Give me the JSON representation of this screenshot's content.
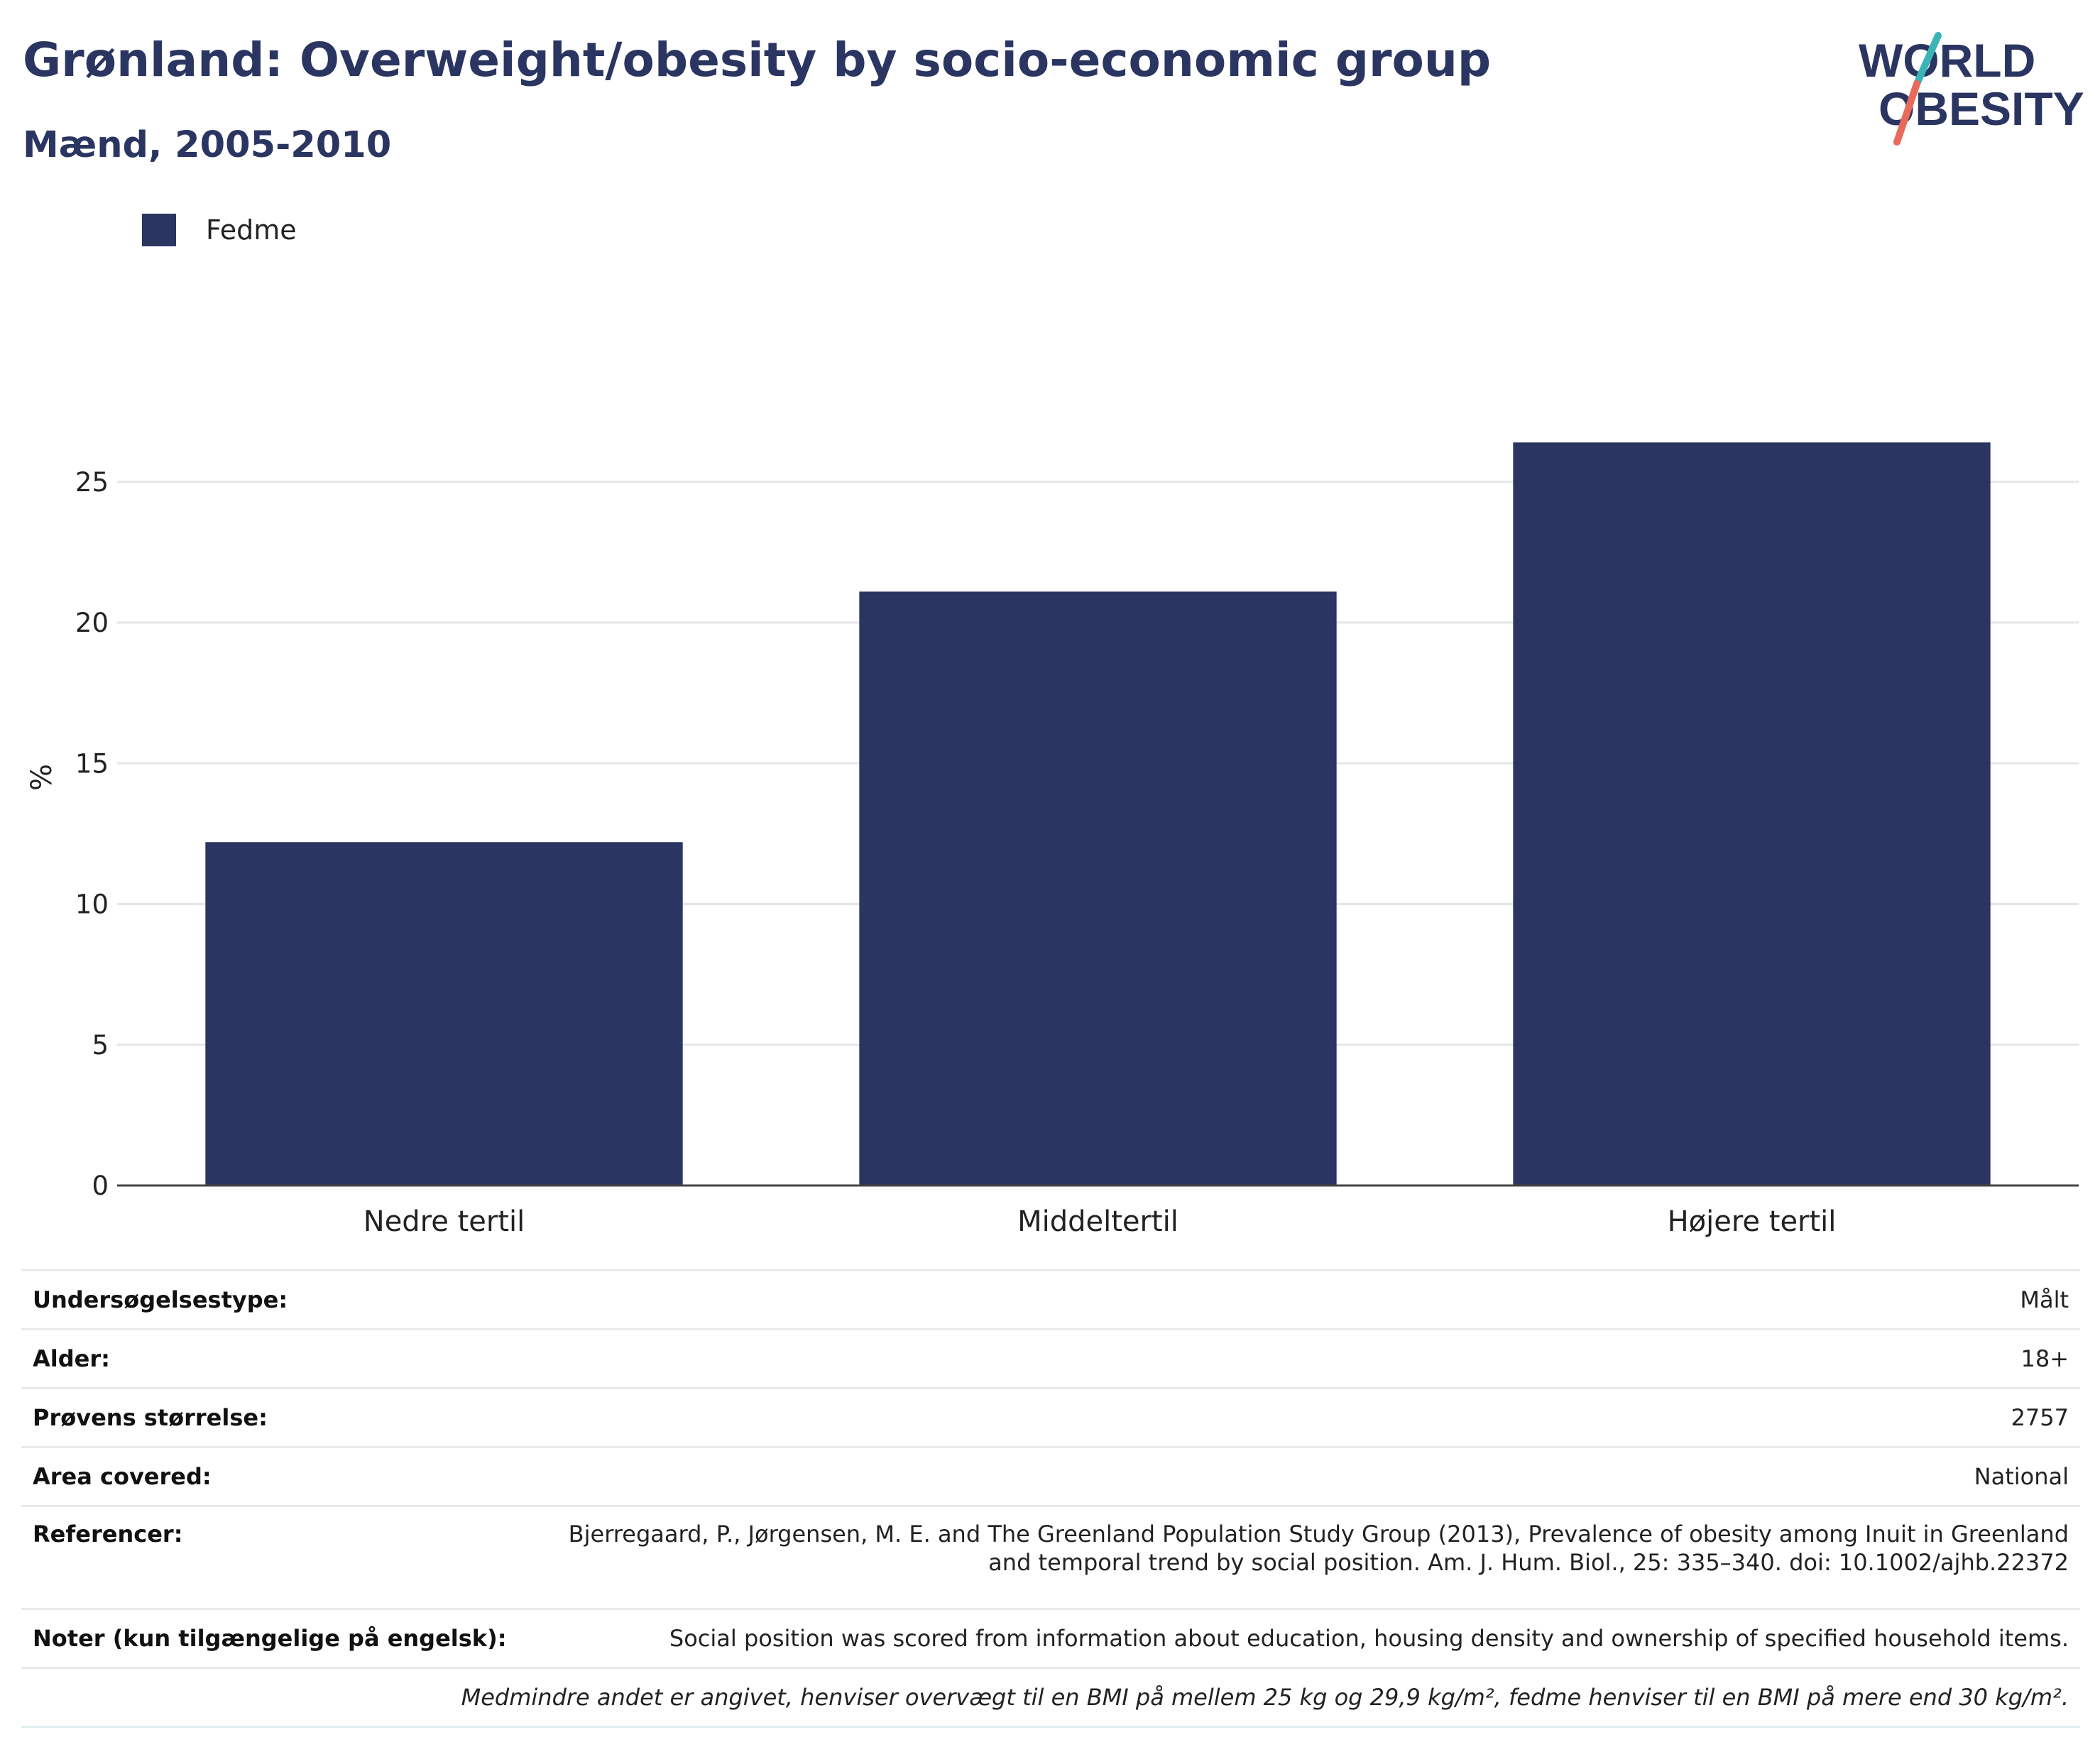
{
  "header": {
    "title": "Grønland: Overweight/obesity by socio-economic group",
    "subtitle": "Mænd, 2005-2010"
  },
  "logo": {
    "line1": "WORLD",
    "line2": "OBESITY",
    "colors": {
      "text": "#2b3561",
      "teal": "#3bb4b8",
      "coral": "#e86a5a"
    }
  },
  "colors": {
    "bar": "#2b3561",
    "grid": "#e6e6e6",
    "axis": "#444444",
    "text": "#222222"
  },
  "chart_data": {
    "type": "bar",
    "categories": [
      "Nedre tertil",
      "Middeltertil",
      "Højere tertil"
    ],
    "series": [
      {
        "name": "Fedme",
        "values": [
          12.2,
          21.1,
          26.4
        ]
      }
    ],
    "ylabel": "%",
    "ylim": [
      0,
      28.5
    ],
    "yticks": [
      0,
      5,
      10,
      15,
      20,
      25
    ],
    "grid": true,
    "legend_position": "top-left"
  },
  "meta": [
    {
      "key": "Undersøgelsestype:",
      "value": "Målt"
    },
    {
      "key": "Alder:",
      "value": "18+"
    },
    {
      "key": "Prøvens størrelse:",
      "value": "2757"
    },
    {
      "key": "Area covered:",
      "value": "National"
    },
    {
      "key": "Referencer:",
      "value": "Bjerregaard, P., Jørgensen, M. E. and The Greenland Population Study Group (2013), Prevalence of obesity among Inuit in Greenland and temporal trend by social position. Am. J. Hum. Biol., 25: 335–340. doi: 10.1002/ajhb.22372"
    },
    {
      "key": "Noter (kun tilgængelige på engelsk):",
      "value": "Social position was scored from information about education, housing density and ownership of specified household items."
    }
  ],
  "footnote": "Medmindre andet er angivet, henviser overvægt til en BMI på mellem 25 kg og 29,9 kg/m², fedme henviser til en BMI på mere end 30 kg/m²."
}
